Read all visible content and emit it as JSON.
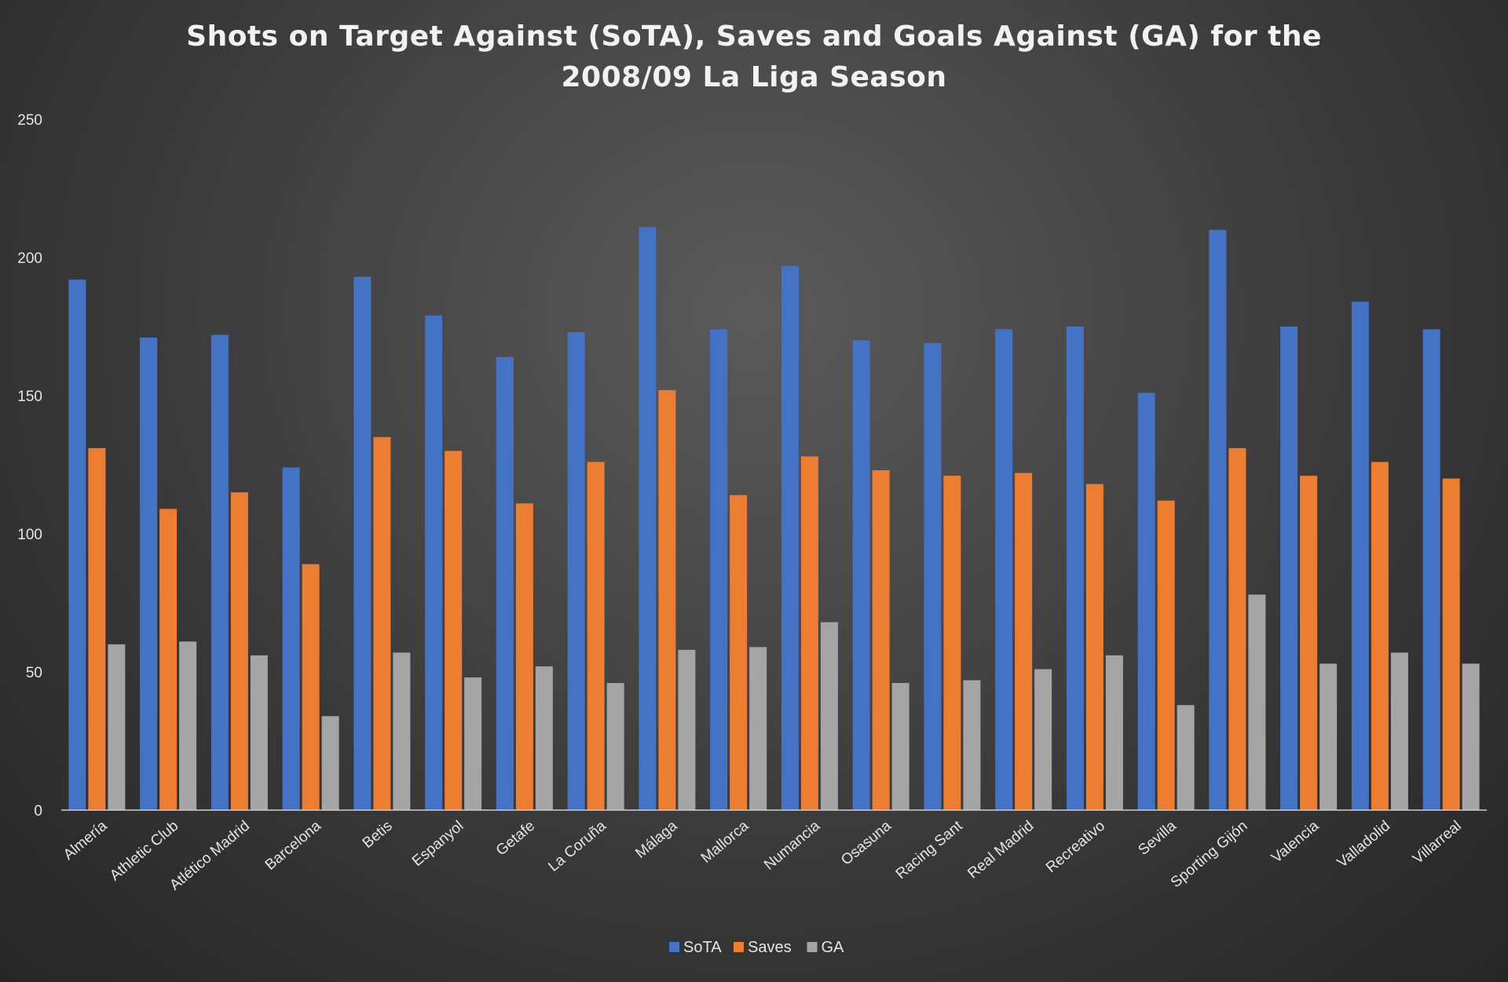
{
  "chart_data": {
    "type": "bar",
    "title_lines": [
      "Shots on Target Against (SoTA), Saves and Goals Against (GA) for the",
      "2008/09 La Liga Season"
    ],
    "xlabel": "",
    "ylabel": "",
    "ylim": [
      0,
      250
    ],
    "yticks": [
      "0",
      "50",
      "100",
      "150",
      "200",
      "250"
    ],
    "grid": false,
    "legend_position": "bottom-center",
    "categories": [
      "Almería",
      "Athletic Club",
      "Atlético Madrid",
      "Barcelona",
      "Betis",
      "Espanyol",
      "Getafe",
      "La Coruña",
      "Málaga",
      "Mallorca",
      "Numancia",
      "Osasuna",
      "Racing Sant",
      "Real Madrid",
      "Recreativo",
      "Sevilla",
      "Sporting Gijón",
      "Valencia",
      "Valladolid",
      "Villarreal"
    ],
    "series": [
      {
        "name": "SoTA",
        "color": "#4472C4",
        "values": [
          192,
          171,
          172,
          124,
          193,
          179,
          164,
          173,
          211,
          174,
          197,
          170,
          169,
          174,
          175,
          151,
          210,
          175,
          184,
          174
        ]
      },
      {
        "name": "Saves",
        "color": "#ED7D31",
        "values": [
          131,
          109,
          115,
          89,
          135,
          130,
          111,
          126,
          152,
          114,
          128,
          123,
          121,
          122,
          118,
          112,
          131,
          121,
          126,
          120
        ]
      },
      {
        "name": "GA",
        "color": "#A5A5A5",
        "values": [
          60,
          61,
          56,
          34,
          57,
          48,
          52,
          46,
          58,
          59,
          68,
          46,
          47,
          51,
          56,
          38,
          78,
          53,
          57,
          53
        ]
      }
    ]
  }
}
